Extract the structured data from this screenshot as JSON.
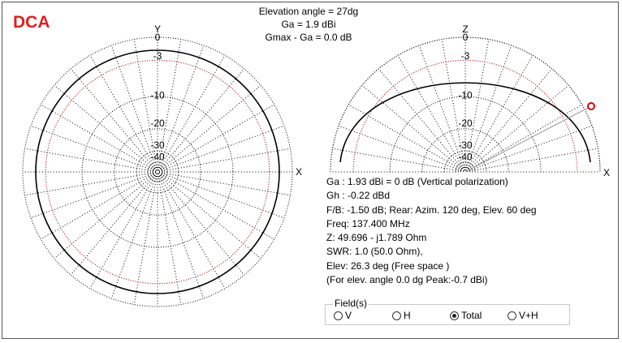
{
  "logo": "DCA",
  "header": {
    "elevation_angle": "Elevation angle =  27dg",
    "ga": "Ga = 1.9 dBi",
    "gmax": "Gmax - Ga = 0.0 dB"
  },
  "azimuth_plot": {
    "axis_y": "Y",
    "axis_x": "X",
    "ring_labels": [
      "0",
      "-3",
      "-10",
      "-20",
      "-30",
      "-40"
    ]
  },
  "elevation_plot": {
    "axis_z": "Z",
    "axis_x": "X",
    "ring_labels": [
      "0",
      "-3",
      "-10",
      "-20",
      "-30",
      "-40"
    ],
    "marker_elevation_deg": 27
  },
  "info": {
    "line1": "Ga : 1.93 dBi = 0 dB  (Vertical polarization)",
    "line2": "Gh : -0.22 dBd",
    "line3": "F/B: -1.50 dB; Rear: Azim. 120 deg,  Elev. 60 deg",
    "line4": "Freq: 137.400 MHz",
    "line5": "Z: 49.696 - j1.789 Ohm",
    "line6": "SWR: 1.0 (50.0 Ohm),",
    "line7": "Elev: 26.3 deg (Free space )",
    "line8": "(For elev. angle 0.0 dg Peak:-0.7 dBi)"
  },
  "field": {
    "legend": "Field(s)",
    "options": [
      "V",
      "H",
      "Total",
      "V+H"
    ],
    "selected": "Total"
  },
  "colors": {
    "pattern": "#000000",
    "ref_circle": "#e03030",
    "marker": "#dd0000",
    "grid": "#000000",
    "logo": "#e02020"
  }
}
